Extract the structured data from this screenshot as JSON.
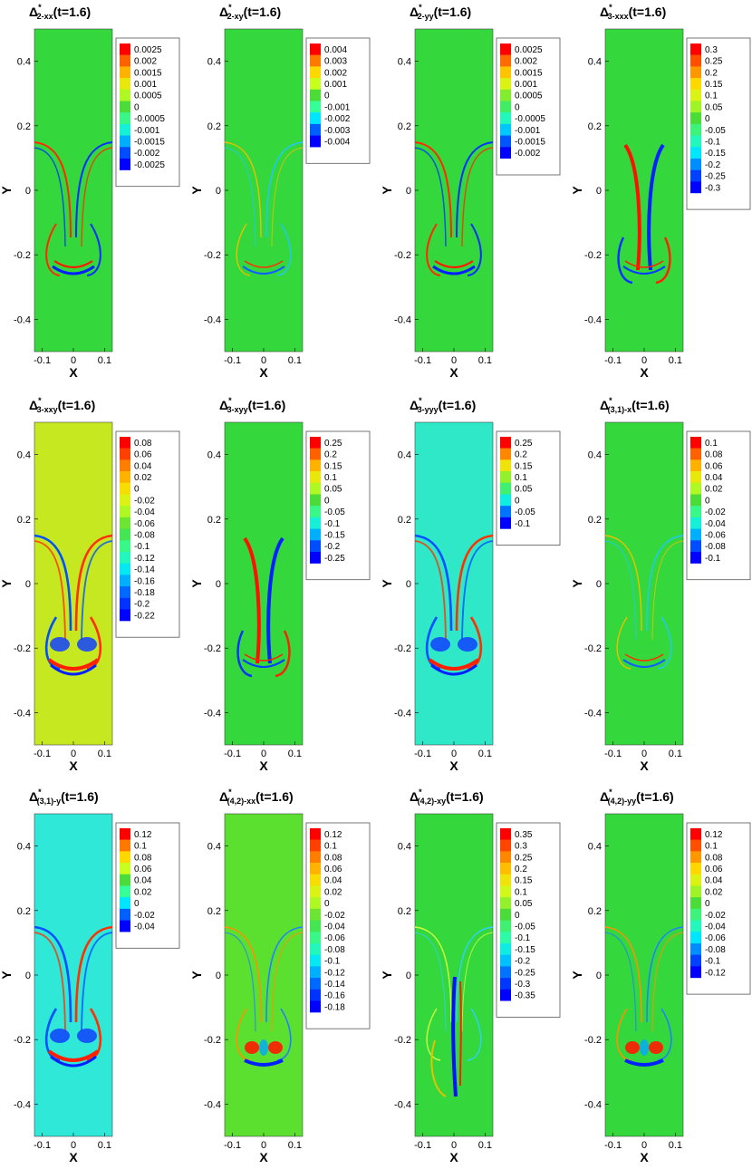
{
  "chart_data": {
    "type": "heatmap",
    "common": {
      "xlabel": "X",
      "ylabel": "Y",
      "xlim": [
        -0.125,
        0.125
      ],
      "ylim": [
        -0.5,
        0.5
      ],
      "xticks": [
        "-0.1",
        "0",
        "0.1"
      ],
      "xtick_values": [
        -0.1,
        0,
        0.1
      ],
      "yticks": [
        "0.4",
        "0.2",
        "0",
        "-0.2",
        "-0.4"
      ],
      "ytick_values": [
        0.4,
        0.2,
        0,
        -0.2,
        -0.4
      ],
      "time": "t=1.6",
      "colormap": [
        "#0000ff",
        "#0060ff",
        "#00e6ff",
        "#36ff9a",
        "#4cdc3a",
        "#c8ff1e",
        "#ffd800",
        "#ff7800",
        "#ff0000"
      ]
    },
    "panels": [
      {
        "name": "2-xx",
        "title_sub": "2-xx",
        "background": "#34d83c",
        "legend": [
          "0.0025",
          "0.002",
          "0.0015",
          "0.001",
          "0.0005",
          "0",
          "-0.0005",
          "-0.001",
          "-0.0015",
          "-0.002",
          "-0.0025"
        ],
        "pattern": "a"
      },
      {
        "name": "2-xy",
        "title_sub": "2-xy",
        "background": "#34d83c",
        "legend": [
          "0.004",
          "0.003",
          "0.002",
          "0.001",
          "0",
          "-0.001",
          "-0.002",
          "-0.003",
          "-0.004"
        ],
        "pattern": "b"
      },
      {
        "name": "2-yy",
        "title_sub": "2-yy",
        "background": "#34d83c",
        "legend": [
          "0.0025",
          "0.002",
          "0.0015",
          "0.001",
          "0.0005",
          "0",
          "-0.0005",
          "-0.001",
          "-0.0015",
          "-0.002"
        ],
        "pattern": "a"
      },
      {
        "name": "3-xxx",
        "title_sub": "3-xxx",
        "background": "#34d83c",
        "legend": [
          "0.3",
          "0.25",
          "0.2",
          "0.15",
          "0.1",
          "0.05",
          "0",
          "-0.05",
          "-0.1",
          "-0.15",
          "-0.2",
          "-0.25",
          "-0.3"
        ],
        "pattern": "c"
      },
      {
        "name": "3-xxy",
        "title_sub": "3-xxy",
        "background": "#c6e820",
        "legend": [
          "0.08",
          "0.06",
          "0.04",
          "0.02",
          "0",
          "-0.02",
          "-0.04",
          "-0.06",
          "-0.08",
          "-0.1",
          "-0.12",
          "-0.14",
          "-0.16",
          "-0.18",
          "-0.2",
          "-0.22"
        ],
        "pattern": "d"
      },
      {
        "name": "3-xyy",
        "title_sub": "3-xyy",
        "background": "#34d83c",
        "legend": [
          "0.25",
          "0.2",
          "0.15",
          "0.1",
          "0.05",
          "0",
          "-0.05",
          "-0.1",
          "-0.15",
          "-0.2",
          "-0.25"
        ],
        "pattern": "c"
      },
      {
        "name": "3-yyy",
        "title_sub": "3-yyy",
        "background": "#2fe8c8",
        "legend": [
          "0.25",
          "0.2",
          "0.15",
          "0.1",
          "0.05",
          "0",
          "-0.05",
          "-0.1"
        ],
        "pattern": "d"
      },
      {
        "name": "(3,1)-x",
        "title_sub": "(3,1)-x",
        "background": "#34d83c",
        "legend": [
          "0.1",
          "0.08",
          "0.06",
          "0.04",
          "0.02",
          "0",
          "-0.02",
          "-0.04",
          "-0.06",
          "-0.08",
          "-0.1"
        ],
        "pattern": "b"
      },
      {
        "name": "(3,1)-y",
        "title_sub": "(3,1)-y",
        "background": "#2fe8d8",
        "legend": [
          "0.12",
          "0.1",
          "0.08",
          "0.06",
          "0.04",
          "0.02",
          "0",
          "-0.02",
          "-0.04"
        ],
        "pattern": "d"
      },
      {
        "name": "(4,2)-xx",
        "title_sub": "(4,2)-xx",
        "background": "#5ce030",
        "legend": [
          "0.12",
          "0.1",
          "0.08",
          "0.06",
          "0.04",
          "0.02",
          "0",
          "-0.02",
          "-0.04",
          "-0.06",
          "-0.08",
          "-0.1",
          "-0.12",
          "-0.14",
          "-0.16",
          "-0.18"
        ],
        "pattern": "e"
      },
      {
        "name": "(4,2)-xy",
        "title_sub": "(4,2)-xy",
        "background": "#34d83c",
        "legend": [
          "0.35",
          "0.3",
          "0.25",
          "0.2",
          "0.15",
          "0.1",
          "0.05",
          "0",
          "-0.05",
          "-0.1",
          "-0.15",
          "-0.2",
          "-0.25",
          "-0.3",
          "-0.35"
        ],
        "pattern": "f"
      },
      {
        "name": "(4,2)-yy",
        "title_sub": "(4,2)-yy",
        "background": "#34d83c",
        "legend": [
          "0.12",
          "0.1",
          "0.08",
          "0.06",
          "0.04",
          "0.02",
          "0",
          "-0.02",
          "-0.04",
          "-0.06",
          "-0.08",
          "-0.1",
          "-0.12"
        ],
        "pattern": "e"
      }
    ]
  }
}
